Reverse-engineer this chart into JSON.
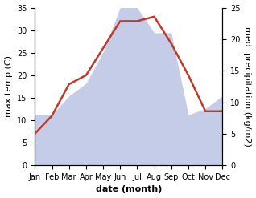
{
  "months": [
    "Jan",
    "Feb",
    "Mar",
    "Apr",
    "May",
    "Jun",
    "Jul",
    "Aug",
    "Sep",
    "Oct",
    "Nov",
    "Dec"
  ],
  "month_positions": [
    1,
    2,
    3,
    4,
    5,
    6,
    7,
    8,
    9,
    10,
    11,
    12
  ],
  "temperature": [
    7,
    11,
    18,
    20,
    26,
    32,
    32,
    33,
    27,
    20,
    12,
    12
  ],
  "precipitation": [
    8,
    8,
    11,
    13,
    18,
    25,
    25,
    21,
    21,
    8,
    9,
    11
  ],
  "temp_color": "#c0392b",
  "precip_fill_color": "#c5cce8",
  "background_color": "#ffffff",
  "left_ylabel": "max temp (C)",
  "right_ylabel": "med. precipitation (kg/m2)",
  "xlabel": "date (month)",
  "temp_ylim": [
    0,
    35
  ],
  "precip_ylim": [
    0,
    25
  ],
  "temp_yticks": [
    0,
    5,
    10,
    15,
    20,
    25,
    30,
    35
  ],
  "precip_yticks": [
    0,
    5,
    10,
    15,
    20,
    25
  ],
  "label_fontsize": 8,
  "tick_fontsize": 7,
  "linewidth": 1.8,
  "temp_scale": 1.4
}
